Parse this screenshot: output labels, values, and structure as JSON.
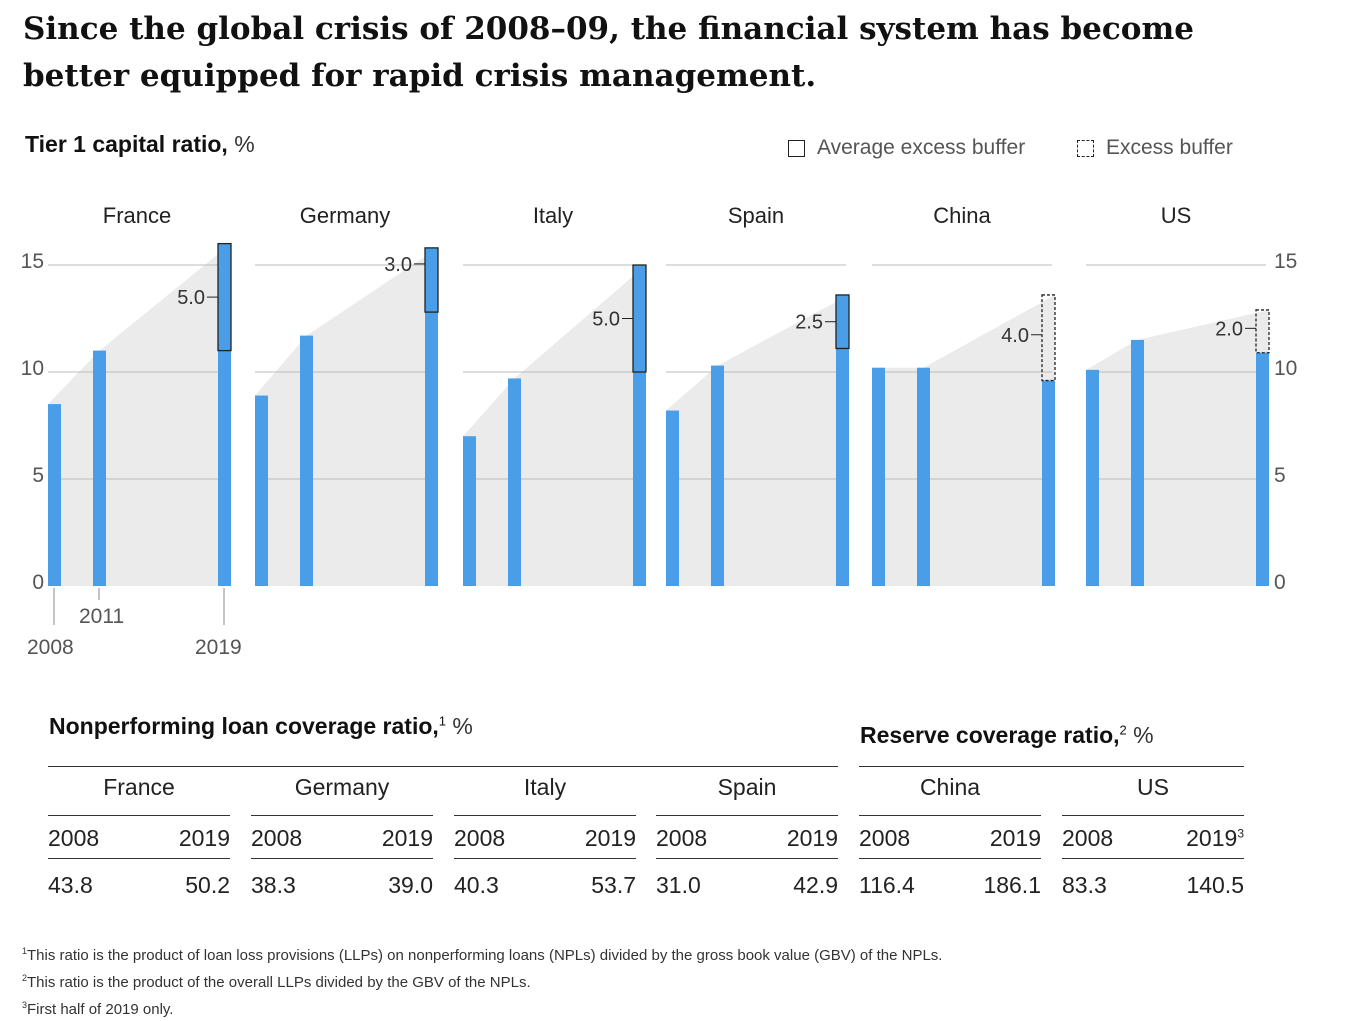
{
  "headline": "Since the global crisis of 2008–09, the financial system has become better equipped for rapid crisis management.",
  "chart_section": {
    "title": "Tier 1 capital ratio,",
    "unit": "%",
    "legend": {
      "average": "Average excess buffer",
      "excess": "Excess buffer"
    }
  },
  "chart_data": {
    "type": "bar",
    "title": "Tier 1 capital ratio, %",
    "ylim": [
      0,
      15
    ],
    "yticks": [
      "0",
      "5",
      "10",
      "15"
    ],
    "grid": true,
    "legend_placement": "top-right",
    "year_labels": [
      "2008",
      "2011",
      "2019"
    ],
    "panels": [
      {
        "country": "France",
        "values": [
          8.5,
          11.0,
          11.0
        ],
        "buffer": 5.0,
        "buffer_label": "5.0",
        "buffer_type": "average"
      },
      {
        "country": "Germany",
        "values": [
          8.9,
          11.7,
          12.8
        ],
        "buffer": 3.0,
        "buffer_label": "3.0",
        "buffer_type": "average"
      },
      {
        "country": "Italy",
        "values": [
          7.0,
          9.7,
          10.0
        ],
        "buffer": 5.0,
        "buffer_label": "5.0",
        "buffer_type": "average"
      },
      {
        "country": "Spain",
        "values": [
          8.2,
          10.3,
          11.1
        ],
        "buffer": 2.5,
        "buffer_label": "2.5",
        "buffer_type": "average"
      },
      {
        "country": "China",
        "values": [
          10.2,
          10.2,
          9.6
        ],
        "buffer": 4.0,
        "buffer_label": "4.0",
        "buffer_type": "excess"
      },
      {
        "country": "US",
        "values": [
          10.1,
          11.5,
          10.9
        ],
        "buffer": 2.0,
        "buffer_label": "2.0",
        "buffer_type": "excess"
      }
    ],
    "colors": {
      "bar": "#4a9ee8",
      "area": "#ebebeb",
      "grid": "#bbbbbb"
    }
  },
  "npl_table": {
    "title": "Nonperforming loan coverage ratio,",
    "sup": "1",
    "unit": "%",
    "groups": [
      {
        "country": "France",
        "y1": "2008",
        "y2": "2019",
        "v1": "43.8",
        "v2": "50.2"
      },
      {
        "country": "Germany",
        "y1": "2008",
        "y2": "2019",
        "v1": "38.3",
        "v2": "39.0"
      },
      {
        "country": "Italy",
        "y1": "2008",
        "y2": "2019",
        "v1": "40.3",
        "v2": "53.7"
      },
      {
        "country": "Spain",
        "y1": "2008",
        "y2": "2019",
        "v1": "31.0",
        "v2": "42.9"
      }
    ]
  },
  "reserve_table": {
    "title": "Reserve coverage ratio,",
    "sup": "2",
    "unit": "%",
    "groups": [
      {
        "country": "China",
        "y1": "2008",
        "y2": "2019",
        "y2sup": "",
        "v1": "116.4",
        "v2": "186.1"
      },
      {
        "country": "US",
        "y1": "2008",
        "y2": "2019",
        "y2sup": "3",
        "v1": "83.3",
        "v2": "140.5"
      }
    ]
  },
  "footnotes": [
    {
      "sup": "1",
      "text": "This ratio is the product of loan loss provisions (LLPs) on nonperforming loans (NPLs) divided by the gross book value (GBV) of the NPLs."
    },
    {
      "sup": "2",
      "text": "This ratio is the product of the overall LLPs divided by the GBV of the NPLs."
    },
    {
      "sup": "3",
      "text": "First half of 2019 only."
    }
  ]
}
